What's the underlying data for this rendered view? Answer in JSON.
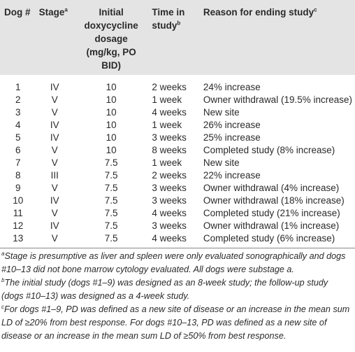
{
  "table": {
    "columns": [
      {
        "text": "Dog #"
      },
      {
        "text": "Stage",
        "note": "a"
      },
      {
        "text": "Initial doxycycline dosage (mg/kg, PO BID)"
      },
      {
        "text": "Time in study",
        "note": "b"
      },
      {
        "text": "Reason for ending study",
        "note": "c"
      }
    ],
    "rows": [
      [
        "1",
        "IV",
        "10",
        "2 weeks",
        "24% increase"
      ],
      [
        "2",
        "V",
        "10",
        "1 week",
        "Owner withdrawal (19.5% increase)"
      ],
      [
        "3",
        "V",
        "10",
        "4 weeks",
        "New site"
      ],
      [
        "4",
        "IV",
        "10",
        "1 week",
        "26% increase"
      ],
      [
        "5",
        "IV",
        "10",
        "3 weeks",
        "25% increase"
      ],
      [
        "6",
        "V",
        "10",
        "8 weeks",
        "Completed study (8% increase)"
      ],
      [
        "7",
        "V",
        "7.5",
        "1 week",
        "New site"
      ],
      [
        "8",
        "III",
        "7.5",
        "2 weeks",
        "22% increase"
      ],
      [
        "9",
        "V",
        "7.5",
        "3 weeks",
        "Owner withdrawal (4% increase)"
      ],
      [
        "10",
        "IV",
        "7.5",
        "3 weeks",
        "Owner withdrawal (18% increase)"
      ],
      [
        "11",
        "V",
        "7.5",
        "4 weeks",
        "Completed study (21% increase)"
      ],
      [
        "12",
        "IV",
        "7.5",
        "3 weeks",
        "Owner withdrawal (1% increase)"
      ],
      [
        "13",
        "V",
        "7.5",
        "4 weeks",
        "Completed study (6% increase)"
      ]
    ],
    "footnotes": [
      {
        "mark": "a",
        "text": "Stage is presumptive as liver and spleen were only evaluated sonographically and dogs #10–13 did not bone marrow cytology evaluated. All dogs were substage a."
      },
      {
        "mark": "b",
        "text": "The initial study (dogs #1–9) was designed as an 8-week study; the follow-up study (dogs #10–13) was designed as a 4-week study."
      },
      {
        "mark": "c",
        "text": "For dogs #1–9, PD was defined as a new site of disease or an increase in the mean sum LD of ≥20% from best response. For dogs #10–13, PD was defined as a new site of disease or an increase in the mean sum LD of ≥50% from best response."
      }
    ]
  }
}
